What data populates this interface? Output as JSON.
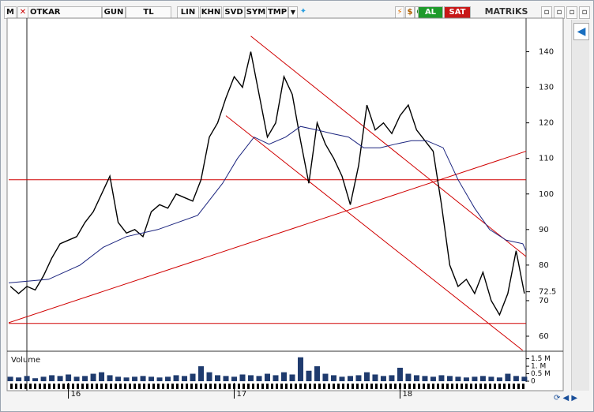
{
  "toolbar": {
    "menu": "M",
    "symbol": "OTKAR",
    "buttons": [
      "GUN",
      "TL",
      "LIN",
      "KHN",
      "SVD",
      "SYM",
      "TMP"
    ],
    "buy": "AL",
    "sell": "SAT",
    "brand": "MATRiKS"
  },
  "chart_data": [
    {
      "type": "line",
      "xlim": [
        15.64,
        18.76
      ],
      "ylim": [
        56,
        149
      ],
      "yticks": [
        60,
        70,
        80,
        90,
        100,
        110,
        120,
        130,
        140
      ],
      "current": 72.5,
      "series": [
        {
          "color": "#000000",
          "x": [
            15.65,
            15.7,
            15.75,
            15.8,
            15.85,
            15.9,
            15.95,
            16,
            16.05,
            16.1,
            16.15,
            16.2,
            16.25,
            16.3,
            16.35,
            16.4,
            16.45,
            16.5,
            16.55,
            16.6,
            16.65,
            16.7,
            16.75,
            16.8,
            16.85,
            16.9,
            16.95,
            17,
            17.05,
            17.1,
            17.15,
            17.2,
            17.25,
            17.3,
            17.35,
            17.4,
            17.45,
            17.5,
            17.55,
            17.6,
            17.65,
            17.7,
            17.75,
            17.8,
            17.85,
            17.9,
            17.95,
            18,
            18.05,
            18.1,
            18.15,
            18.2,
            18.25,
            18.3,
            18.35,
            18.4,
            18.45,
            18.5,
            18.55,
            18.6,
            18.65,
            18.7,
            18.75
          ],
          "values": [
            74,
            72,
            74,
            73,
            77,
            82,
            86,
            87,
            88,
            92,
            95,
            100,
            105,
            92,
            89,
            90,
            88,
            95,
            97,
            96,
            100,
            99,
            98,
            104,
            116,
            120,
            127,
            133,
            130,
            140,
            128,
            116,
            120,
            133,
            128,
            115,
            103,
            120,
            114,
            110,
            105,
            97,
            108,
            125,
            118,
            120,
            117,
            122,
            125,
            118,
            115,
            112,
            97,
            80,
            74,
            76,
            72,
            78,
            70,
            66,
            72,
            84,
            72
          ]
        },
        {
          "color": "#1a237e",
          "x": [
            15.64,
            15.88,
            16.07,
            16.21,
            16.35,
            16.54,
            16.78,
            16.93,
            17.02,
            17.12,
            17.21,
            17.31,
            17.4,
            17.5,
            17.59,
            17.69,
            17.78,
            17.88,
            17.97,
            18.07,
            18.16,
            18.26,
            18.35,
            18.45,
            18.54,
            18.64,
            18.74,
            18.76
          ],
          "values": [
            75,
            76,
            80,
            85,
            88,
            90,
            94,
            103,
            110,
            116,
            114,
            116,
            119,
            118,
            117,
            116,
            113,
            113,
            114,
            115,
            115,
            113,
            104,
            96,
            90,
            87,
            86,
            84
          ]
        }
      ],
      "lines": [
        {
          "color": "#d00000",
          "x": [
            15.64,
            18.76
          ],
          "y": [
            104,
            104
          ]
        },
        {
          "color": "#d00000",
          "x": [
            15.64,
            18.76
          ],
          "y": [
            63.6,
            63.6
          ]
        },
        {
          "color": "#d00000",
          "x": [
            15.64,
            18.83
          ],
          "y": [
            63.8,
            113.1
          ]
        },
        {
          "color": "#d00000",
          "x": [
            17.1,
            18.83
          ],
          "y": [
            144.4,
            79.8
          ]
        },
        {
          "color": "#d00000",
          "x": [
            16.95,
            18.74
          ],
          "y": [
            122,
            56
          ]
        }
      ]
    },
    {
      "type": "bar",
      "title": "Volume",
      "color": "#1f3b6e",
      "xlim": [
        15.64,
        18.76
      ],
      "xticks": [
        16,
        17,
        18
      ],
      "ylim": [
        0,
        1900000
      ],
      "yticks": [
        {
          "value": 1500000,
          "label": "1.5 M"
        },
        {
          "value": 1000000,
          "label": "1. M"
        },
        {
          "value": 500000,
          "label": "0.5 M"
        },
        {
          "value": 0,
          "label": "0"
        }
      ],
      "x": [
        15.65,
        15.7,
        15.75,
        15.8,
        15.85,
        15.9,
        15.95,
        16,
        16.05,
        16.1,
        16.15,
        16.2,
        16.25,
        16.3,
        16.35,
        16.4,
        16.45,
        16.5,
        16.55,
        16.6,
        16.65,
        16.7,
        16.75,
        16.8,
        16.85,
        16.9,
        16.95,
        17,
        17.05,
        17.1,
        17.15,
        17.2,
        17.25,
        17.3,
        17.35,
        17.4,
        17.45,
        17.5,
        17.55,
        17.6,
        17.65,
        17.7,
        17.75,
        17.8,
        17.85,
        17.9,
        17.95,
        18,
        18.05,
        18.1,
        18.15,
        18.2,
        18.25,
        18.3,
        18.35,
        18.4,
        18.45,
        18.5,
        18.55,
        18.6,
        18.65,
        18.7,
        18.75
      ],
      "values": [
        300000,
        250000,
        350000,
        200000,
        300000,
        400000,
        350000,
        450000,
        300000,
        350000,
        500000,
        600000,
        400000,
        300000,
        250000,
        300000,
        350000,
        300000,
        250000,
        300000,
        400000,
        350000,
        500000,
        1000000,
        600000,
        400000,
        350000,
        300000,
        450000,
        400000,
        350000,
        500000,
        400000,
        600000,
        450000,
        1600000,
        700000,
        1000000,
        500000,
        400000,
        300000,
        350000,
        400000,
        600000,
        450000,
        350000,
        400000,
        900000,
        500000,
        400000,
        350000,
        300000,
        400000,
        350000,
        300000,
        250000,
        300000,
        350000,
        300000,
        250000,
        500000,
        350000,
        300000
      ]
    }
  ]
}
